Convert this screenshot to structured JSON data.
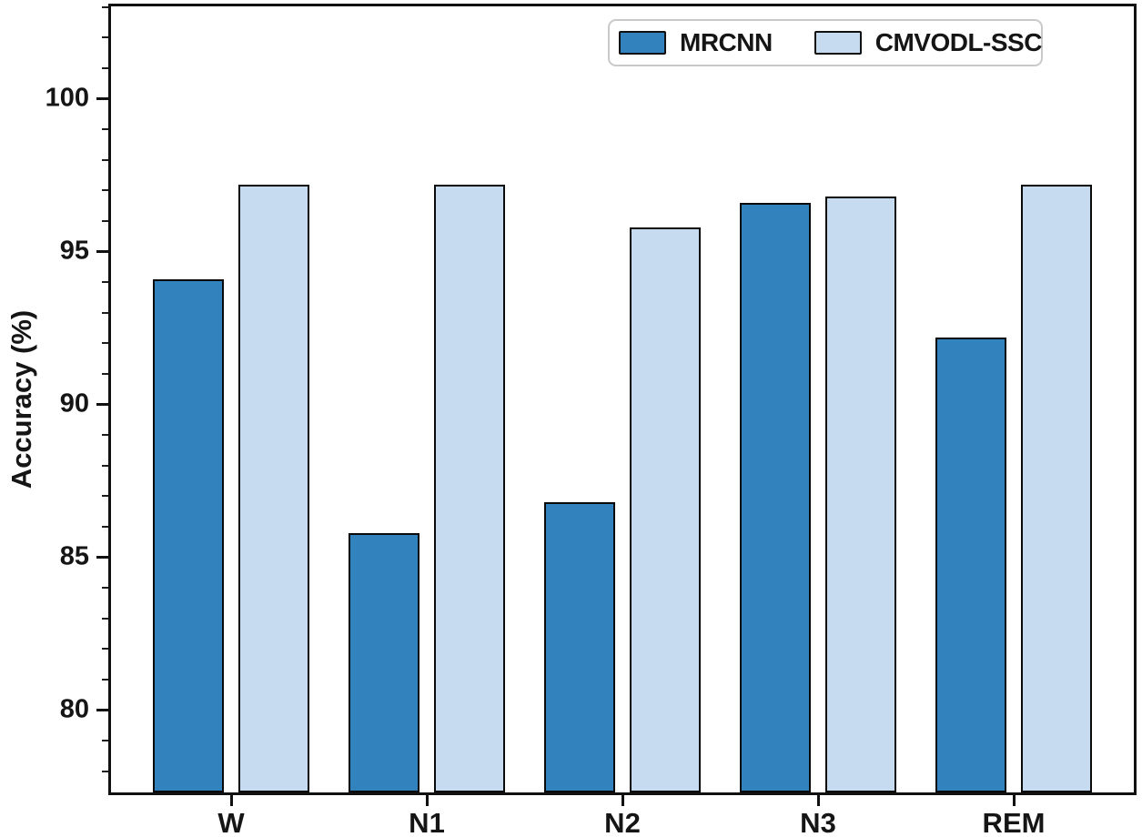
{
  "chart_data": {
    "type": "bar",
    "title": "",
    "categories": [
      "W",
      "N1",
      "N2",
      "N3",
      "REM"
    ],
    "series": [
      {
        "name": "MRCNN",
        "color": "#3182BD",
        "values": [
          94.1,
          85.8,
          86.8,
          96.6,
          92.2
        ]
      },
      {
        "name": "CMVODL-SSC",
        "color": "#C6DBEF",
        "values": [
          97.2,
          97.2,
          95.8,
          96.8,
          97.2
        ]
      }
    ],
    "xlabel": "",
    "ylabel": "Accuracy (%)",
    "yticks": [
      80,
      85,
      90,
      95,
      100
    ],
    "ylim": [
      77.3,
      103.02
    ],
    "minor_tick_step": 1,
    "bar_edge_color": "#0a0a0a",
    "grid": false,
    "legend": {
      "position": "upper right",
      "labels": [
        "MRCNN",
        "CMVODL-SSC"
      ]
    }
  }
}
